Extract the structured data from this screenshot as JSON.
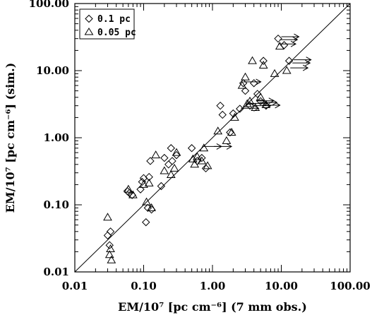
{
  "chart_data": {
    "type": "scatter",
    "xlabel": "EM/10⁷ [pc cm⁻⁶] (7 mm obs.)",
    "ylabel": "EM/10⁷ [pc cm⁻⁶] (sim.)",
    "xscale": "log",
    "yscale": "log",
    "xlim": [
      0.01,
      100
    ],
    "ylim": [
      0.01,
      100
    ],
    "x_ticks": [
      "0.01",
      "0.10",
      "1.00",
      "10.00",
      "100.00"
    ],
    "y_ticks": [
      "0.01",
      "0.10",
      "1.00",
      "10.00",
      "100.00"
    ],
    "reference_line": "y = x",
    "legend_position": "top-left",
    "series": [
      {
        "name": "0.1 pc",
        "marker": "diamond",
        "points": [
          [
            0.03,
            0.035
          ],
          [
            0.033,
            0.04
          ],
          [
            0.032,
            0.025
          ],
          [
            0.058,
            0.16
          ],
          [
            0.062,
            0.15
          ],
          [
            0.068,
            0.14
          ],
          [
            0.09,
            0.17
          ],
          [
            0.095,
            0.22
          ],
          [
            0.1,
            0.25
          ],
          [
            0.108,
            0.055
          ],
          [
            0.115,
            0.09
          ],
          [
            0.125,
            0.45
          ],
          [
            0.12,
            0.26
          ],
          [
            0.13,
            0.085
          ],
          [
            0.18,
            0.19
          ],
          [
            0.2,
            0.5
          ],
          [
            0.23,
            0.4
          ],
          [
            0.25,
            0.7
          ],
          [
            0.26,
            0.45
          ],
          [
            0.3,
            0.55
          ],
          [
            0.5,
            0.7
          ],
          [
            0.6,
            0.45
          ],
          [
            0.7,
            0.5
          ],
          [
            0.8,
            0.35
          ],
          [
            1.3,
            3.0
          ],
          [
            1.4,
            2.2
          ],
          [
            1.8,
            1.2
          ],
          [
            2.0,
            2.3
          ],
          [
            2.5,
            2.7
          ],
          [
            2.8,
            6.5
          ],
          [
            3.0,
            5.0
          ],
          [
            3.5,
            3.0
          ],
          [
            4.0,
            6.5
          ],
          [
            4.5,
            4.5
          ],
          [
            5.0,
            3.5
          ],
          [
            5.5,
            14.0
          ],
          [
            6.0,
            3.0
          ],
          [
            9.0,
            30.0
          ],
          [
            11.0,
            24.0
          ],
          [
            13.0,
            14.0
          ]
        ]
      },
      {
        "name": "0.05 pc",
        "marker": "triangle",
        "points": [
          [
            0.03,
            0.065
          ],
          [
            0.032,
            0.018
          ],
          [
            0.034,
            0.015
          ],
          [
            0.033,
            0.022
          ],
          [
            0.06,
            0.17
          ],
          [
            0.07,
            0.14
          ],
          [
            0.1,
            0.2
          ],
          [
            0.11,
            0.11
          ],
          [
            0.12,
            0.21
          ],
          [
            0.13,
            0.09
          ],
          [
            0.15,
            0.55
          ],
          [
            0.2,
            0.32
          ],
          [
            0.25,
            0.28
          ],
          [
            0.28,
            0.35
          ],
          [
            0.3,
            0.6
          ],
          [
            0.52,
            0.48
          ],
          [
            0.55,
            0.4
          ],
          [
            0.6,
            0.52
          ],
          [
            0.7,
            0.45
          ],
          [
            0.75,
            0.7
          ],
          [
            0.85,
            0.38
          ],
          [
            1.2,
            1.25
          ],
          [
            1.6,
            0.9
          ],
          [
            1.9,
            1.2
          ],
          [
            2.1,
            2.0
          ],
          [
            2.7,
            6.0
          ],
          [
            3.0,
            8.0
          ],
          [
            3.2,
            3.2
          ],
          [
            3.5,
            3.5
          ],
          [
            3.8,
            14.0
          ],
          [
            4.2,
            2.8
          ],
          [
            5.0,
            4.0
          ],
          [
            5.5,
            12.0
          ],
          [
            6.0,
            3.1
          ],
          [
            8.0,
            9.0
          ],
          [
            9.5,
            23.0
          ],
          [
            12.0,
            10.0
          ]
        ]
      }
    ],
    "arrows": [
      [
        0.75,
        0.74
      ],
      [
        1.05,
        0.74
      ],
      [
        2.6,
        2.75
      ],
      [
        3.5,
        3.25
      ],
      [
        3.9,
        3.0
      ],
      [
        4.3,
        3.55
      ],
      [
        4.8,
        3.35
      ],
      [
        5.3,
        3.05
      ],
      [
        2.8,
        6.8
      ],
      [
        9.0,
        25.0
      ],
      [
        9.5,
        29.0
      ],
      [
        10.0,
        32.0
      ],
      [
        13.5,
        11.0
      ],
      [
        14.5,
        13.0
      ],
      [
        15.0,
        14.5
      ]
    ]
  }
}
